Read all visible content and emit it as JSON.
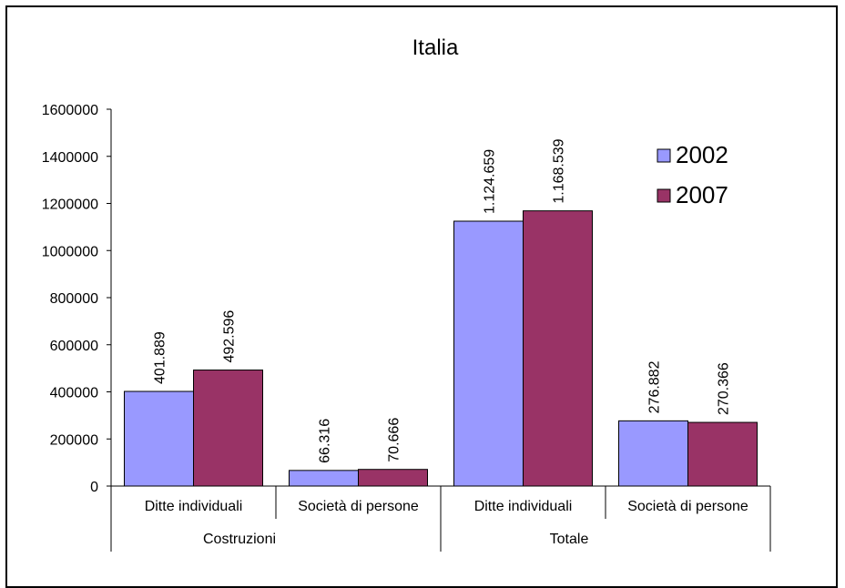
{
  "chart_data": {
    "type": "bar",
    "title": "Italia",
    "groups": [
      {
        "label": "Costruzioni",
        "categories": [
          "Ditte individuali",
          "Società di persone"
        ]
      },
      {
        "label": "Totale",
        "categories": [
          "Ditte individuali",
          "Società di persone"
        ]
      }
    ],
    "categories": [
      "Ditte individuali",
      "Società di persone",
      "Ditte individuali",
      "Società di persone"
    ],
    "series": [
      {
        "name": "2002",
        "color": "#9999ff",
        "values": [
          401889,
          66316,
          1124659,
          276882
        ],
        "labels": [
          "401.889",
          "66.316",
          "1.124.659",
          "276.882"
        ]
      },
      {
        "name": "2007",
        "color": "#993366",
        "values": [
          492596,
          70666,
          1168539,
          270366
        ],
        "labels": [
          "492.596",
          "70.666",
          "1.168.539",
          "270.366"
        ]
      }
    ],
    "yticks": [
      "0",
      "200000",
      "400000",
      "600000",
      "800000",
      "1000000",
      "1200000",
      "1400000",
      "1600000"
    ],
    "ylim": [
      0,
      1600000
    ],
    "legend_position": "top-right",
    "grid": false
  }
}
